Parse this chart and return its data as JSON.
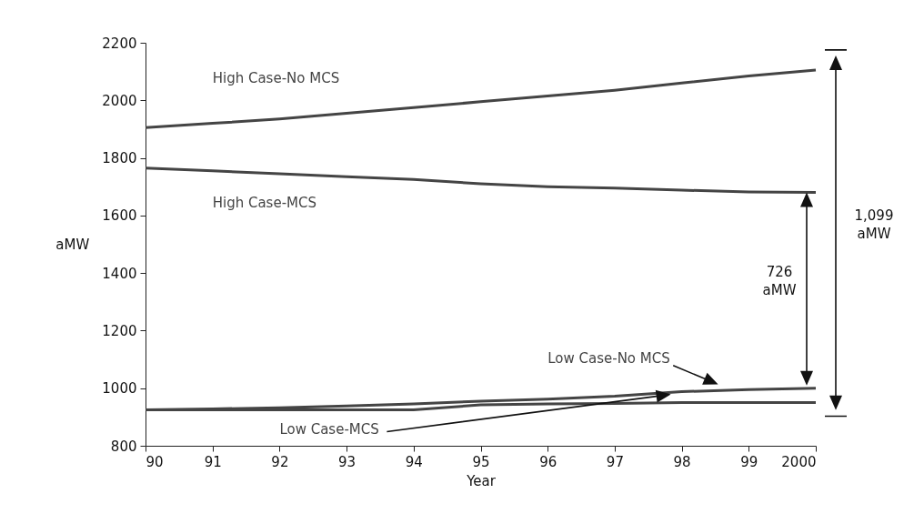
{
  "chart_data": {
    "type": "line",
    "xlabel": "Year",
    "ylabel": "aMW",
    "x": [
      1990,
      1991,
      1992,
      1993,
      1994,
      1995,
      1996,
      1997,
      1998,
      1999,
      2000
    ],
    "series": [
      {
        "name": "High Case-No MCS",
        "color": "#444444",
        "values": [
          1905,
          1920,
          1935,
          1955,
          1975,
          1995,
          2015,
          2035,
          2060,
          2085,
          2105
        ]
      },
      {
        "name": "High Case-MCS",
        "color": "#444444",
        "values": [
          1765,
          1755,
          1745,
          1735,
          1725,
          1710,
          1700,
          1695,
          1688,
          1682,
          1680
        ]
      },
      {
        "name": "Low Case-No MCS",
        "color": "#444444",
        "values": [
          925,
          928,
          932,
          938,
          945,
          955,
          962,
          972,
          988,
          995,
          1000
        ]
      },
      {
        "name": "Low Case-MCS",
        "color": "#444444",
        "values": [
          925,
          925,
          925,
          925,
          925,
          942,
          945,
          947,
          950,
          950,
          950
        ]
      }
    ],
    "xlim": [
      1990,
      2000
    ],
    "xticks": [
      {
        "value": 1990,
        "label": "90"
      },
      {
        "value": 1991,
        "label": "91"
      },
      {
        "value": 1992,
        "label": "92"
      },
      {
        "value": 1993,
        "label": "93"
      },
      {
        "value": 1994,
        "label": "94"
      },
      {
        "value": 1995,
        "label": "95"
      },
      {
        "value": 1996,
        "label": "96"
      },
      {
        "value": 1997,
        "label": "97"
      },
      {
        "value": 1998,
        "label": "98"
      },
      {
        "value": 1999,
        "label": "99"
      },
      2000
    ],
    "ylim": [
      800,
      2200
    ],
    "yticks": [
      800,
      1000,
      1200,
      1400,
      1600,
      1800,
      2000,
      2200
    ],
    "grid": false,
    "legend": false,
    "marker": "none",
    "line_style": "solid",
    "annotations": [
      "726 aMW",
      "1,099 aMW"
    ]
  }
}
